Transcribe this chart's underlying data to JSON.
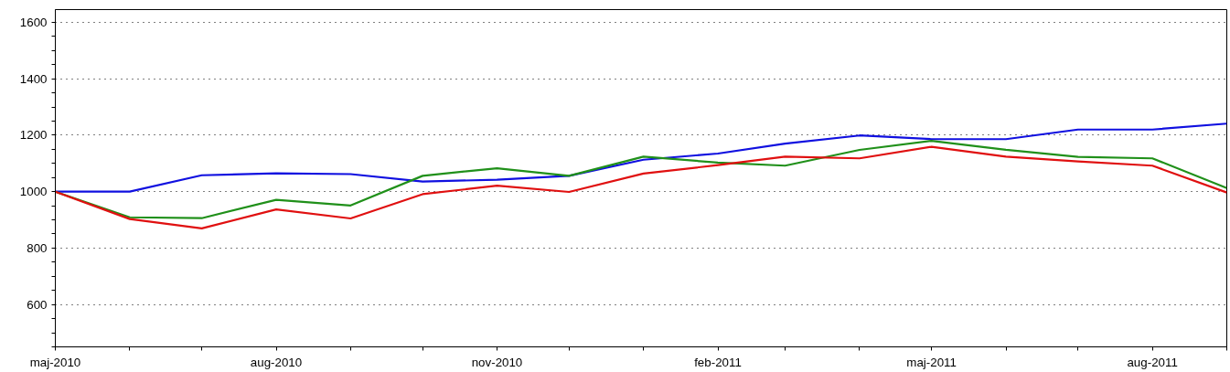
{
  "chart_data": {
    "type": "line",
    "x": [
      "2010-05",
      "2010-06",
      "2010-07",
      "2010-08",
      "2010-09",
      "2010-10",
      "2010-11",
      "2010-12",
      "2011-01",
      "2011-02",
      "2011-03",
      "2011-04",
      "2011-05",
      "2011-06",
      "2011-07",
      "2011-08",
      "2011-09"
    ],
    "series": [
      {
        "color": "#1010e0",
        "values": [
          1000,
          1000,
          1058,
          1065,
          1062,
          1036,
          1042,
          1056,
          1113,
          1135,
          1170,
          1199,
          1186,
          1186,
          1220,
          1220,
          1241
        ]
      },
      {
        "color": "#20901a",
        "values": [
          1000,
          909,
          906,
          971,
          951,
          1056,
          1083,
          1056,
          1124,
          1103,
          1092,
          1148,
          1180,
          1148,
          1123,
          1118,
          1013
        ]
      },
      {
        "color": "#e01010",
        "values": [
          1000,
          903,
          870,
          937,
          905,
          991,
          1021,
          999,
          1064,
          1094,
          1124,
          1118,
          1159,
          1124,
          1107,
          1092,
          997
        ]
      }
    ],
    "xlim": [
      "2010-05",
      "2011-09"
    ],
    "xticks": [
      {
        "value": "2010-05",
        "label": "maj-2010"
      },
      {
        "value": "2010-06",
        "label": null
      },
      {
        "value": "2010-07",
        "label": null
      },
      {
        "value": "2010-08",
        "label": "aug-2010"
      },
      {
        "value": "2010-09",
        "label": null
      },
      {
        "value": "2010-10",
        "label": null
      },
      {
        "value": "2010-11",
        "label": "nov-2010"
      },
      {
        "value": "2010-12",
        "label": null
      },
      {
        "value": "2011-01",
        "label": null
      },
      {
        "value": "2011-02",
        "label": "feb-2011"
      },
      {
        "value": "2011-03",
        "label": null
      },
      {
        "value": "2011-04",
        "label": null
      },
      {
        "value": "2011-05",
        "label": "maj-2011"
      },
      {
        "value": "2011-06",
        "label": null
      },
      {
        "value": "2011-07",
        "label": null
      },
      {
        "value": "2011-08",
        "label": "aug-2011"
      },
      {
        "value": "2011-09",
        "label": null
      }
    ],
    "ylim": [
      450,
      1645
    ],
    "yticks": [
      {
        "value": 450,
        "label": null
      },
      {
        "value": 500,
        "label": null
      },
      {
        "value": 550,
        "label": null
      },
      600,
      {
        "value": 650,
        "label": null
      },
      {
        "value": 700,
        "label": null
      },
      {
        "value": 750,
        "label": null
      },
      800,
      {
        "value": 850,
        "label": null
      },
      {
        "value": 900,
        "label": null
      },
      {
        "value": 950,
        "label": null
      },
      1000,
      {
        "value": 1050,
        "label": null
      },
      {
        "value": 1100,
        "label": null
      },
      {
        "value": 1150,
        "label": null
      },
      1200,
      {
        "value": 1250,
        "label": null
      },
      {
        "value": 1300,
        "label": null
      },
      {
        "value": 1350,
        "label": null
      },
      1400,
      {
        "value": 1450,
        "label": null
      },
      {
        "value": 1500,
        "label": null
      },
      {
        "value": 1550,
        "label": null
      },
      1600
    ],
    "grid": "y",
    "marker": "none",
    "line_style": "solid"
  }
}
